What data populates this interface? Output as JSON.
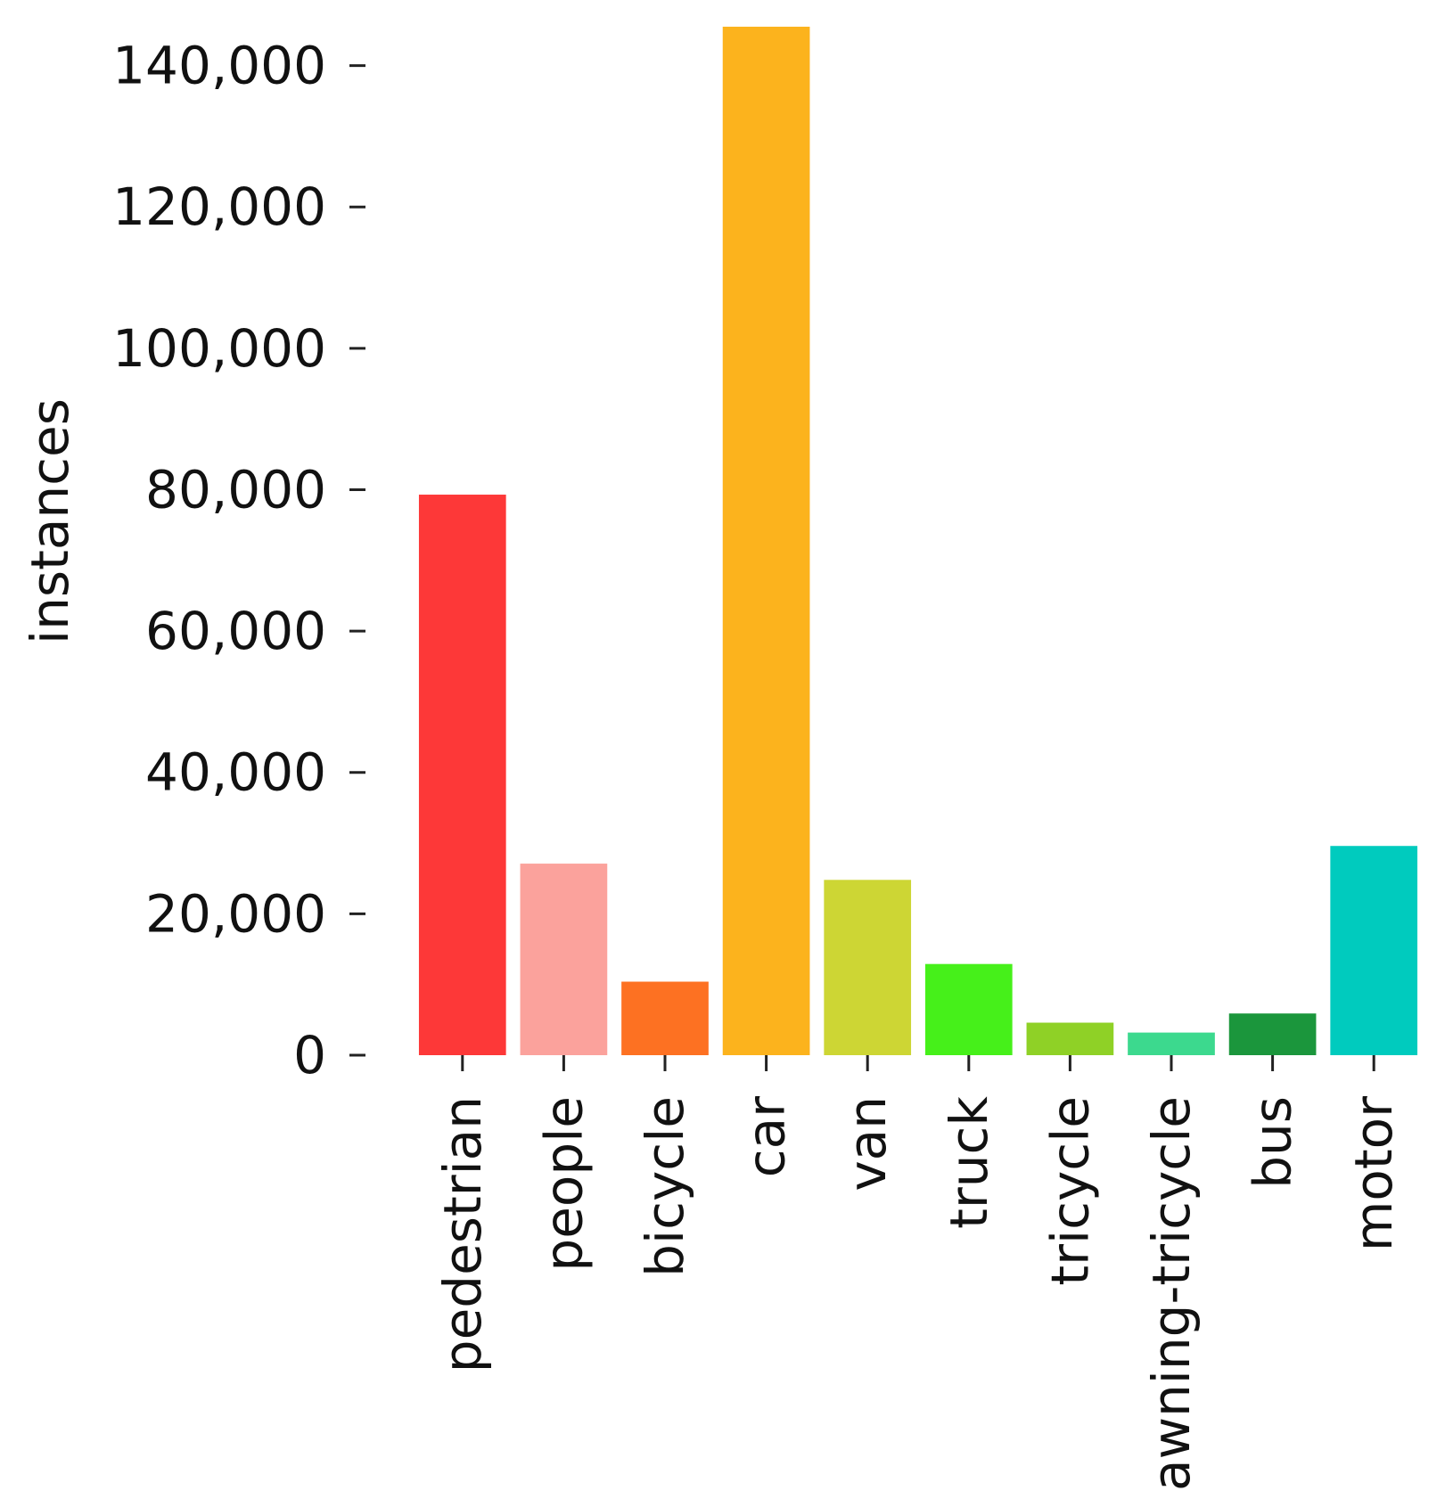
{
  "chart_data": {
    "type": "bar",
    "title": "",
    "xlabel": "",
    "ylabel": "instances",
    "ylim": [
      0,
      146000
    ],
    "yticks": [
      0,
      20000,
      40000,
      60000,
      80000,
      100000,
      120000,
      140000
    ],
    "ytick_labels": [
      "0",
      "20,000",
      "40,000",
      "60,000",
      "80,000",
      "100,000",
      "120,000",
      "140,000"
    ],
    "grid": false,
    "categories": [
      "pedestrian",
      "people",
      "bicycle",
      "car",
      "van",
      "truck",
      "tricycle",
      "awning-tricycle",
      "bus",
      "motor"
    ],
    "values": [
      79300,
      27100,
      10400,
      145500,
      24800,
      12900,
      4600,
      3200,
      5900,
      29600
    ],
    "colors": [
      "#fd3838",
      "#fba29c",
      "#fd7122",
      "#fcb31d",
      "#cdd634",
      "#46f01a",
      "#8fd126",
      "#3cd98e",
      "#1b963c",
      "#00cbbe"
    ]
  }
}
